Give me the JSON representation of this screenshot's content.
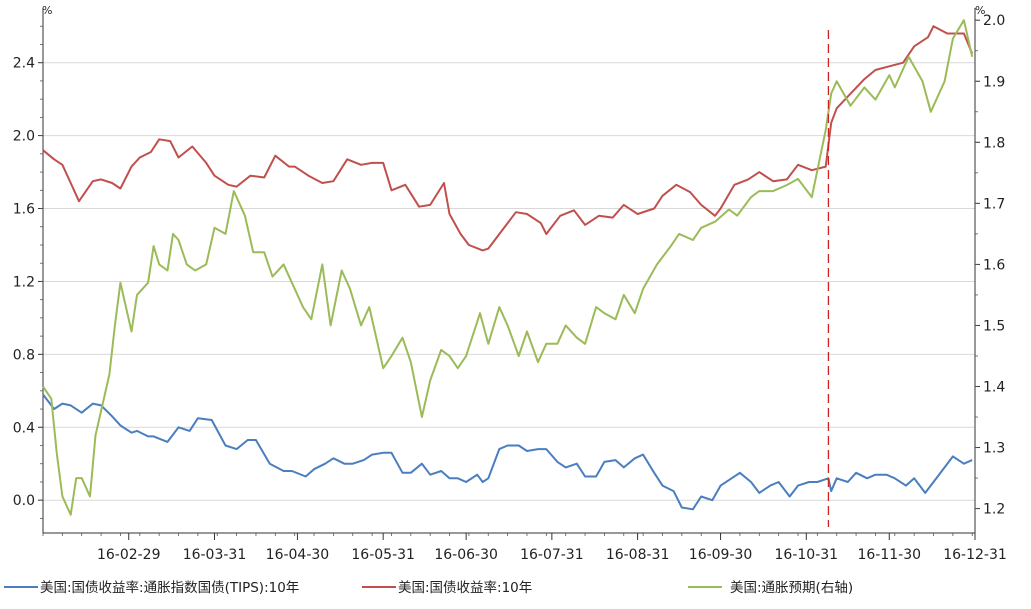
{
  "chart_data": {
    "type": "line",
    "title": "",
    "xlabel": "",
    "ylabel_left": "%",
    "ylabel_right": "%",
    "ylim_left": [
      -0.18,
      2.7
    ],
    "ylim_right": [
      1.16,
      2.02
    ],
    "left_ticks": [
      "0.0",
      "0.4",
      "0.8",
      "1.2",
      "1.6",
      "2.0",
      "2.4"
    ],
    "right_ticks": [
      "1.2",
      "1.3",
      "1.4",
      "1.5",
      "1.6",
      "1.7",
      "1.8",
      "1.9",
      "2.0"
    ],
    "x_range": [
      "2016-01-29",
      "2016-12-31"
    ],
    "x_ticks": [
      "16-02-29",
      "16-03-31",
      "16-04-30",
      "16-05-31",
      "16-06-30",
      "16-07-31",
      "16-08-31",
      "16-09-30",
      "16-10-31",
      "16-11-30",
      "16-12-31"
    ],
    "event_marker": {
      "date": "2016-11-08",
      "color": "#cc2222",
      "style": "dashed"
    },
    "grid": "horizontal",
    "legend_position": "bottom",
    "series": [
      {
        "name": "美国:国债收益率:通胀指数国债(TIPS):10年",
        "axis": "left",
        "color": "#4a7ebf",
        "x": [
          "2016-01-29",
          "2016-02-02",
          "2016-02-05",
          "2016-02-08",
          "2016-02-12",
          "2016-02-16",
          "2016-02-19",
          "2016-02-23",
          "2016-02-26",
          "2016-03-01",
          "2016-03-03",
          "2016-03-07",
          "2016-03-09",
          "2016-03-14",
          "2016-03-18",
          "2016-03-22",
          "2016-03-25",
          "2016-03-30",
          "2016-04-04",
          "2016-04-08",
          "2016-04-12",
          "2016-04-15",
          "2016-04-20",
          "2016-04-25",
          "2016-04-28",
          "2016-05-03",
          "2016-05-06",
          "2016-05-10",
          "2016-05-13",
          "2016-05-17",
          "2016-05-20",
          "2016-05-24",
          "2016-05-27",
          "2016-05-31",
          "2016-06-03",
          "2016-06-07",
          "2016-06-10",
          "2016-06-14",
          "2016-06-17",
          "2016-06-21",
          "2016-06-24",
          "2016-06-27",
          "2016-06-30",
          "2016-07-04",
          "2016-07-06",
          "2016-07-08",
          "2016-07-12",
          "2016-07-15",
          "2016-07-19",
          "2016-07-22",
          "2016-07-26",
          "2016-07-29",
          "2016-08-02",
          "2016-08-05",
          "2016-08-09",
          "2016-08-12",
          "2016-08-16",
          "2016-08-19",
          "2016-08-23",
          "2016-08-26",
          "2016-08-30",
          "2016-09-02",
          "2016-09-06",
          "2016-09-09",
          "2016-09-13",
          "2016-09-16",
          "2016-09-20",
          "2016-09-23",
          "2016-09-27",
          "2016-09-30",
          "2016-10-04",
          "2016-10-07",
          "2016-10-11",
          "2016-10-14",
          "2016-10-18",
          "2016-10-21",
          "2016-10-25",
          "2016-10-28",
          "2016-11-01",
          "2016-11-04",
          "2016-11-08",
          "2016-11-09",
          "2016-11-11",
          "2016-11-15",
          "2016-11-18",
          "2016-11-22",
          "2016-11-25",
          "2016-11-29",
          "2016-12-02",
          "2016-12-06",
          "2016-12-09",
          "2016-12-13",
          "2016-12-16",
          "2016-12-20",
          "2016-12-23",
          "2016-12-27",
          "2016-12-30"
        ],
        "values": [
          0.58,
          0.5,
          0.53,
          0.52,
          0.48,
          0.53,
          0.52,
          0.46,
          0.41,
          0.37,
          0.38,
          0.35,
          0.35,
          0.32,
          0.4,
          0.38,
          0.45,
          0.44,
          0.3,
          0.28,
          0.33,
          0.33,
          0.2,
          0.16,
          0.16,
          0.13,
          0.17,
          0.2,
          0.23,
          0.2,
          0.2,
          0.22,
          0.25,
          0.26,
          0.26,
          0.15,
          0.15,
          0.2,
          0.14,
          0.16,
          0.12,
          0.12,
          0.1,
          0.14,
          0.1,
          0.12,
          0.28,
          0.3,
          0.3,
          0.27,
          0.28,
          0.28,
          0.21,
          0.18,
          0.2,
          0.13,
          0.13,
          0.21,
          0.22,
          0.18,
          0.23,
          0.25,
          0.15,
          0.08,
          0.05,
          -0.04,
          -0.05,
          0.02,
          0.0,
          0.08,
          0.12,
          0.15,
          0.1,
          0.04,
          0.08,
          0.1,
          0.02,
          0.08,
          0.1,
          0.1,
          0.12,
          0.05,
          0.12,
          0.1,
          0.15,
          0.12,
          0.14,
          0.14,
          0.12,
          0.08,
          0.12,
          0.04,
          0.1,
          0.18,
          0.24,
          0.2,
          0.22
        ],
        "comment": "sampled points"
      },
      {
        "name": "美国:国债收益率:10年",
        "axis": "left",
        "color": "#c0504d",
        "x": [
          "2016-01-29",
          "2016-02-02",
          "2016-02-05",
          "2016-02-08",
          "2016-02-11",
          "2016-02-16",
          "2016-02-19",
          "2016-02-23",
          "2016-02-26",
          "2016-03-01",
          "2016-03-04",
          "2016-03-08",
          "2016-03-11",
          "2016-03-15",
          "2016-03-18",
          "2016-03-23",
          "2016-03-28",
          "2016-03-31",
          "2016-04-05",
          "2016-04-08",
          "2016-04-13",
          "2016-04-18",
          "2016-04-22",
          "2016-04-27",
          "2016-04-29",
          "2016-05-04",
          "2016-05-09",
          "2016-05-13",
          "2016-05-18",
          "2016-05-23",
          "2016-05-27",
          "2016-05-31",
          "2016-06-03",
          "2016-06-08",
          "2016-06-13",
          "2016-06-17",
          "2016-06-22",
          "2016-06-24",
          "2016-06-28",
          "2016-07-01",
          "2016-07-06",
          "2016-07-08",
          "2016-07-13",
          "2016-07-18",
          "2016-07-22",
          "2016-07-27",
          "2016-07-29",
          "2016-08-03",
          "2016-08-08",
          "2016-08-12",
          "2016-08-17",
          "2016-08-22",
          "2016-08-26",
          "2016-08-31",
          "2016-09-06",
          "2016-09-09",
          "2016-09-14",
          "2016-09-19",
          "2016-09-23",
          "2016-09-28",
          "2016-09-30",
          "2016-10-05",
          "2016-10-10",
          "2016-10-14",
          "2016-10-19",
          "2016-10-24",
          "2016-10-28",
          "2016-11-02",
          "2016-11-07",
          "2016-11-09",
          "2016-11-11",
          "2016-11-16",
          "2016-11-21",
          "2016-11-25",
          "2016-11-30",
          "2016-12-05",
          "2016-12-09",
          "2016-12-14",
          "2016-12-16",
          "2016-12-21",
          "2016-12-27",
          "2016-12-30"
        ],
        "values": [
          1.92,
          1.87,
          1.84,
          1.74,
          1.64,
          1.75,
          1.76,
          1.74,
          1.71,
          1.83,
          1.88,
          1.91,
          1.98,
          1.97,
          1.88,
          1.94,
          1.85,
          1.78,
          1.73,
          1.72,
          1.78,
          1.77,
          1.89,
          1.83,
          1.83,
          1.78,
          1.74,
          1.75,
          1.87,
          1.84,
          1.85,
          1.85,
          1.7,
          1.73,
          1.61,
          1.62,
          1.74,
          1.57,
          1.46,
          1.4,
          1.37,
          1.38,
          1.48,
          1.58,
          1.57,
          1.52,
          1.46,
          1.56,
          1.59,
          1.51,
          1.56,
          1.55,
          1.62,
          1.57,
          1.6,
          1.67,
          1.73,
          1.69,
          1.62,
          1.56,
          1.6,
          1.73,
          1.76,
          1.8,
          1.75,
          1.76,
          1.84,
          1.81,
          1.83,
          2.07,
          2.15,
          2.23,
          2.31,
          2.36,
          2.38,
          2.4,
          2.49,
          2.54,
          2.6,
          2.56,
          2.56,
          2.45
        ]
      },
      {
        "name": "美国:通胀预期(右轴)",
        "axis": "right",
        "color": "#9bbb59",
        "x": [
          "2016-01-29",
          "2016-02-01",
          "2016-02-03",
          "2016-02-05",
          "2016-02-08",
          "2016-02-10",
          "2016-02-12",
          "2016-02-15",
          "2016-02-17",
          "2016-02-19",
          "2016-02-22",
          "2016-02-24",
          "2016-02-26",
          "2016-03-01",
          "2016-03-03",
          "2016-03-07",
          "2016-03-09",
          "2016-03-11",
          "2016-03-14",
          "2016-03-16",
          "2016-03-18",
          "2016-03-21",
          "2016-03-24",
          "2016-03-28",
          "2016-03-31",
          "2016-04-04",
          "2016-04-07",
          "2016-04-11",
          "2016-04-14",
          "2016-04-18",
          "2016-04-21",
          "2016-04-25",
          "2016-04-28",
          "2016-05-02",
          "2016-05-05",
          "2016-05-09",
          "2016-05-12",
          "2016-05-16",
          "2016-05-19",
          "2016-05-23",
          "2016-05-26",
          "2016-05-31",
          "2016-06-03",
          "2016-06-07",
          "2016-06-10",
          "2016-06-14",
          "2016-06-17",
          "2016-06-21",
          "2016-06-24",
          "2016-06-27",
          "2016-06-30",
          "2016-07-05",
          "2016-07-08",
          "2016-07-12",
          "2016-07-15",
          "2016-07-19",
          "2016-07-22",
          "2016-07-26",
          "2016-07-29",
          "2016-08-02",
          "2016-08-05",
          "2016-08-09",
          "2016-08-12",
          "2016-08-16",
          "2016-08-19",
          "2016-08-23",
          "2016-08-26",
          "2016-08-30",
          "2016-09-02",
          "2016-09-07",
          "2016-09-12",
          "2016-09-15",
          "2016-09-20",
          "2016-09-23",
          "2016-09-28",
          "2016-10-03",
          "2016-10-06",
          "2016-10-11",
          "2016-10-14",
          "2016-10-19",
          "2016-10-24",
          "2016-10-28",
          "2016-11-02",
          "2016-11-07",
          "2016-11-09",
          "2016-11-11",
          "2016-11-16",
          "2016-11-21",
          "2016-11-25",
          "2016-11-30",
          "2016-12-02",
          "2016-12-07",
          "2016-12-12",
          "2016-12-15",
          "2016-12-20",
          "2016-12-23",
          "2016-12-27",
          "2016-12-30"
        ],
        "values": [
          1.4,
          1.38,
          1.29,
          1.22,
          1.19,
          1.25,
          1.25,
          1.22,
          1.32,
          1.36,
          1.42,
          1.5,
          1.57,
          1.49,
          1.55,
          1.57,
          1.63,
          1.6,
          1.59,
          1.65,
          1.64,
          1.6,
          1.59,
          1.6,
          1.66,
          1.65,
          1.72,
          1.68,
          1.62,
          1.62,
          1.58,
          1.6,
          1.57,
          1.53,
          1.51,
          1.6,
          1.5,
          1.59,
          1.56,
          1.5,
          1.53,
          1.43,
          1.45,
          1.48,
          1.44,
          1.35,
          1.41,
          1.46,
          1.45,
          1.43,
          1.45,
          1.52,
          1.47,
          1.53,
          1.5,
          1.45,
          1.49,
          1.44,
          1.47,
          1.47,
          1.5,
          1.48,
          1.47,
          1.53,
          1.52,
          1.51,
          1.55,
          1.52,
          1.56,
          1.6,
          1.63,
          1.65,
          1.64,
          1.66,
          1.67,
          1.69,
          1.68,
          1.71,
          1.72,
          1.72,
          1.73,
          1.74,
          1.71,
          1.82,
          1.88,
          1.9,
          1.86,
          1.89,
          1.87,
          1.91,
          1.89,
          1.94,
          1.9,
          1.85,
          1.9,
          1.97,
          2.0,
          1.94
        ]
      }
    ]
  }
}
